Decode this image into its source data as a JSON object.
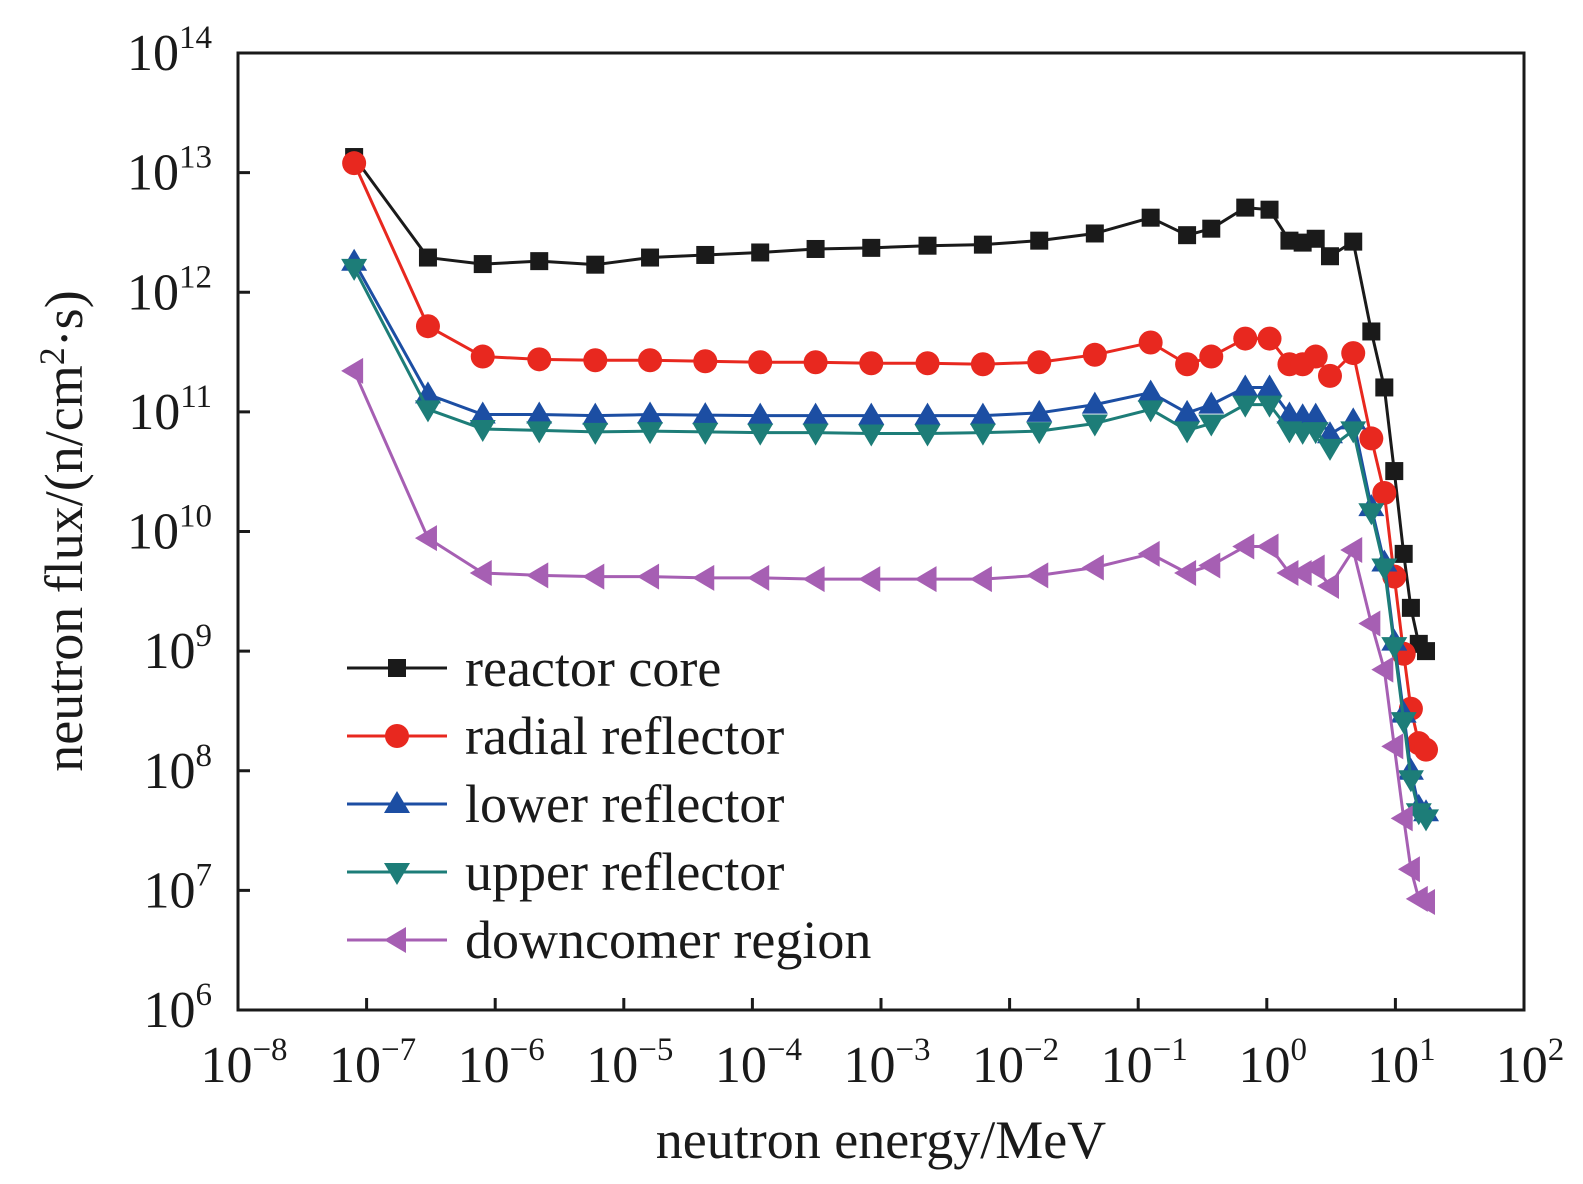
{
  "chart_data": {
    "type": "line",
    "title": "",
    "xlabel": "neutron energy/MeV",
    "ylabel": "neutron flux/(n/cm2·s)",
    "xscale": "log",
    "yscale": "log",
    "xlim": [
      1e-08,
      100
    ],
    "ylim": [
      1000000.0,
      100000000000000.0
    ],
    "x_ticks": [
      {
        "base": "10",
        "exp": "−8",
        "value": 1e-08
      },
      {
        "base": "10",
        "exp": "−7",
        "value": 1e-07
      },
      {
        "base": "10",
        "exp": "−6",
        "value": 1e-06
      },
      {
        "base": "10",
        "exp": "−5",
        "value": 1e-05
      },
      {
        "base": "10",
        "exp": "−4",
        "value": 0.0001
      },
      {
        "base": "10",
        "exp": "−3",
        "value": 0.001
      },
      {
        "base": "10",
        "exp": "−2",
        "value": 0.01
      },
      {
        "base": "10",
        "exp": "−1",
        "value": 0.1
      },
      {
        "base": "10",
        "exp": "0",
        "value": 1
      },
      {
        "base": "10",
        "exp": "1",
        "value": 10
      },
      {
        "base": "10",
        "exp": "2",
        "value": 100
      }
    ],
    "y_ticks": [
      {
        "base": "10",
        "exp": "6",
        "value": 1000000.0
      },
      {
        "base": "10",
        "exp": "7",
        "value": 10000000.0
      },
      {
        "base": "10",
        "exp": "8",
        "value": 100000000.0
      },
      {
        "base": "10",
        "exp": "9",
        "value": 1000000000.0
      },
      {
        "base": "10",
        "exp": "10",
        "value": 10000000000.0
      },
      {
        "base": "10",
        "exp": "11",
        "value": 100000000000.0
      },
      {
        "base": "10",
        "exp": "12",
        "value": 1000000000000.0
      },
      {
        "base": "10",
        "exp": "13",
        "value": 10000000000000.0
      },
      {
        "base": "10",
        "exp": "14",
        "value": 100000000000000.0
      }
    ],
    "grid": false,
    "legend_position": "bottom-left",
    "series": [
      {
        "name": "reactor core",
        "color": "#1a1a1a",
        "marker": "square",
        "x": [
          8e-08,
          3e-07,
          8e-07,
          2.2e-06,
          6e-06,
          1.6e-05,
          4.3e-05,
          0.000115,
          0.00031,
          0.00084,
          0.0023,
          0.0062,
          0.017,
          0.046,
          0.125,
          0.24,
          0.37,
          0.68,
          1.05,
          1.5,
          1.9,
          2.4,
          3.1,
          4.7,
          6.5,
          8.2,
          9.8,
          11.6,
          13.2,
          15.2,
          17.3
        ],
        "y": [
          13500000000000.0,
          1950000000000.0,
          1720000000000.0,
          1820000000000.0,
          1700000000000.0,
          1950000000000.0,
          2050000000000.0,
          2150000000000.0,
          2300000000000.0,
          2350000000000.0,
          2450000000000.0,
          2500000000000.0,
          2700000000000.0,
          3100000000000.0,
          4200000000000.0,
          3000000000000.0,
          3400000000000.0,
          5100000000000.0,
          4900000000000.0,
          2700000000000.0,
          2600000000000.0,
          2800000000000.0,
          2000000000000.0,
          2650000000000.0,
          470000000000.0,
          160000000000.0,
          32000000000.0,
          6500000000.0,
          2300000000.0,
          1150000000.0,
          1000000000.0
        ]
      },
      {
        "name": "radial reflector",
        "color": "#e8281f",
        "marker": "circle",
        "x": [
          8e-08,
          3e-07,
          8e-07,
          2.2e-06,
          6e-06,
          1.6e-05,
          4.3e-05,
          0.000115,
          0.00031,
          0.00084,
          0.0023,
          0.0062,
          0.017,
          0.046,
          0.125,
          0.24,
          0.37,
          0.68,
          1.05,
          1.5,
          1.9,
          2.4,
          3.1,
          4.7,
          6.5,
          8.2,
          9.8,
          11.6,
          13.2,
          15.2,
          17.3
        ],
        "y": [
          12000000000000.0,
          520000000000.0,
          290000000000.0,
          275000000000.0,
          270000000000.0,
          270000000000.0,
          265000000000.0,
          260000000000.0,
          260000000000.0,
          255000000000.0,
          255000000000.0,
          250000000000.0,
          260000000000.0,
          300000000000.0,
          380000000000.0,
          250000000000.0,
          290000000000.0,
          410000000000.0,
          410000000000.0,
          250000000000.0,
          250000000000.0,
          290000000000.0,
          200000000000.0,
          310000000000.0,
          60000000000.0,
          21000000000.0,
          4200000000.0,
          950000000.0,
          330000000.0,
          170000000.0,
          150000000.0
        ]
      },
      {
        "name": "lower reflector",
        "color": "#1c4ea3",
        "marker": "triangle-up",
        "x": [
          8e-08,
          3e-07,
          8e-07,
          2.2e-06,
          6e-06,
          1.6e-05,
          4.3e-05,
          0.000115,
          0.00031,
          0.00084,
          0.0023,
          0.0062,
          0.017,
          0.046,
          0.125,
          0.24,
          0.37,
          0.68,
          1.05,
          1.5,
          1.9,
          2.4,
          3.1,
          4.7,
          6.5,
          8.2,
          9.8,
          11.6,
          13.2,
          15.2,
          17.3
        ],
        "y": [
          1800000000000.0,
          140000000000.0,
          95000000000.0,
          95000000000.0,
          93000000000.0,
          95000000000.0,
          94000000000.0,
          93000000000.0,
          93000000000.0,
          93000000000.0,
          93000000000.0,
          93000000000.0,
          98000000000.0,
          115000000000.0,
          145000000000.0,
          98000000000.0,
          115000000000.0,
          160000000000.0,
          160000000000.0,
          95000000000.0,
          92000000000.0,
          93000000000.0,
          65000000000.0,
          85000000000.0,
          16000000000.0,
          5500000000.0,
          1200000000.0,
          300000000.0,
          100000000.0,
          50000000.0,
          45000000.0
        ]
      },
      {
        "name": "upper reflector",
        "color": "#1d7d78",
        "marker": "triangle-down",
        "x": [
          8e-08,
          3e-07,
          8e-07,
          2.2e-06,
          6e-06,
          1.6e-05,
          4.3e-05,
          0.000115,
          0.00031,
          0.00084,
          0.0023,
          0.0062,
          0.017,
          0.046,
          0.125,
          0.24,
          0.37,
          0.68,
          1.05,
          1.5,
          1.9,
          2.4,
          3.1,
          4.7,
          6.5,
          8.2,
          9.8,
          11.6,
          13.2,
          15.2,
          17.3
        ],
        "y": [
          1600000000000.0,
          105000000000.0,
          72000000000.0,
          70000000000.0,
          68000000000.0,
          69000000000.0,
          68000000000.0,
          67000000000.0,
          67000000000.0,
          66000000000.0,
          66000000000.0,
          67000000000.0,
          69000000000.0,
          80000000000.0,
          105000000000.0,
          70000000000.0,
          80000000000.0,
          115000000000.0,
          115000000000.0,
          70000000000.0,
          68000000000.0,
          69000000000.0,
          50000000000.0,
          70000000000.0,
          14500000000.0,
          5000000000.0,
          1100000000.0,
          260000000.0,
          85000000.0,
          45000000.0,
          40000000.0
        ]
      },
      {
        "name": "downcomer region",
        "color": "#a65fb3",
        "marker": "triangle-left",
        "x": [
          8e-08,
          3e-07,
          8e-07,
          2.2e-06,
          6e-06,
          1.6e-05,
          4.3e-05,
          0.000115,
          0.00031,
          0.00084,
          0.0023,
          0.0062,
          0.017,
          0.046,
          0.125,
          0.24,
          0.37,
          0.68,
          1.05,
          1.5,
          1.9,
          2.4,
          3.1,
          4.7,
          6.5,
          8.2,
          9.8,
          11.6,
          13.2,
          15.2,
          17.3
        ],
        "y": [
          220000000000.0,
          8800000000.0,
          4500000000.0,
          4300000000.0,
          4200000000.0,
          4200000000.0,
          4100000000.0,
          4100000000.0,
          4000000000.0,
          4000000000.0,
          4000000000.0,
          4000000000.0,
          4300000000.0,
          5000000000.0,
          6500000000.0,
          4500000000.0,
          5200000000.0,
          7500000000.0,
          7500000000.0,
          4500000000.0,
          4500000000.0,
          5000000000.0,
          3500000000.0,
          7000000000.0,
          1700000000.0,
          700000000.0,
          160000000.0,
          40000000.0,
          15000000.0,
          8500000.0,
          8000000.0
        ]
      }
    ]
  }
}
